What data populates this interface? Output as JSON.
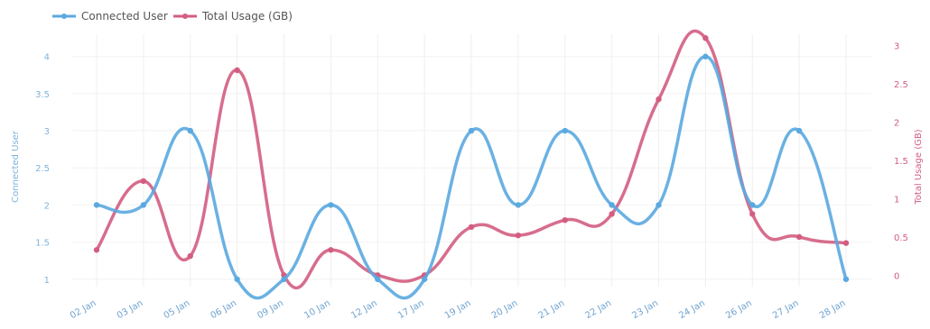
{
  "chart_data": {
    "type": "line",
    "title": "",
    "legend_placement": "top-left",
    "grid": true,
    "categories": [
      "02 Jan",
      "03 Jan",
      "05 Jan",
      "06 Jan",
      "09 Jan",
      "10 Jan",
      "12 Jan",
      "17 Jan",
      "19 Jan",
      "20 Jan",
      "21 Jan",
      "22 Jan",
      "23 Jan",
      "24 Jan",
      "26 Jan",
      "27 Jan",
      "28 Jan"
    ],
    "xlabel": "",
    "y_left": {
      "label": "Connected User",
      "range": [
        0.9,
        4.3
      ],
      "ticks": [
        "1",
        "1.5",
        "2",
        "2.5",
        "3",
        "3.5",
        "4"
      ]
    },
    "y_right": {
      "label": "Total Usage (GB)",
      "range": [
        -0.15,
        3.15
      ],
      "ticks": [
        "0",
        "0.5",
        "1",
        "1.5",
        "2",
        "2.5",
        "3"
      ]
    },
    "series": [
      {
        "name": "Connected User",
        "axis": "left",
        "color": "#5aa9e0",
        "values": [
          2,
          2,
          3,
          1,
          1,
          2,
          1,
          1,
          3,
          2,
          3,
          2,
          2,
          4,
          2,
          3,
          1
        ]
      },
      {
        "name": "Total Usage (GB)",
        "axis": "right",
        "color": "#d35d81",
        "values": [
          0.33,
          1.23,
          0.25,
          2.68,
          0,
          0.33,
          0,
          0,
          0.63,
          0.52,
          0.72,
          0.8,
          2.3,
          3.1,
          0.8,
          0.5,
          0.42
        ]
      }
    ]
  }
}
